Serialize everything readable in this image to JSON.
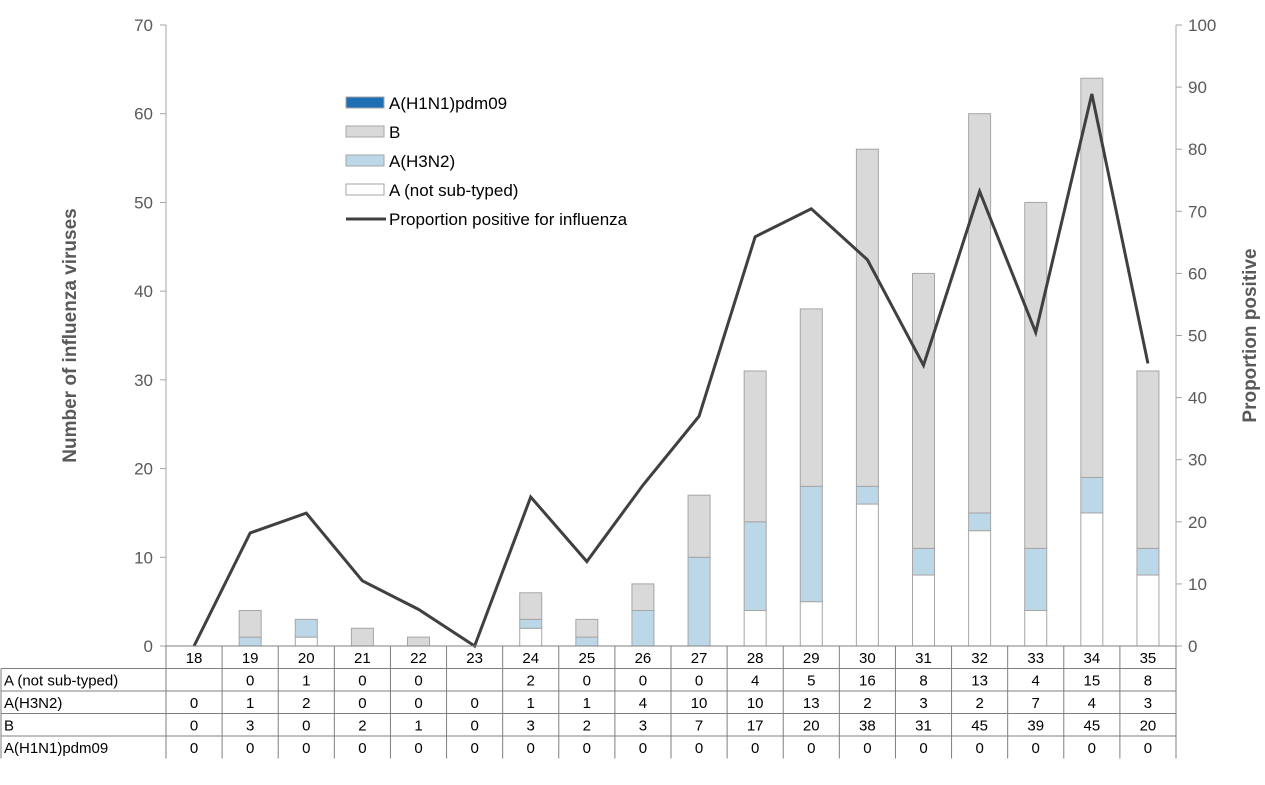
{
  "chart_data": {
    "type": "bar",
    "stacked": true,
    "categories": [
      "18",
      "19",
      "20",
      "21",
      "22",
      "23",
      "24",
      "25",
      "26",
      "27",
      "28",
      "29",
      "30",
      "31",
      "32",
      "33",
      "34",
      "35"
    ],
    "series": [
      {
        "name": "A (not sub-typed)",
        "color": "#ffffff",
        "values": [
          null,
          0,
          1,
          0,
          0,
          null,
          2,
          0,
          0,
          0,
          4,
          5,
          16,
          8,
          13,
          4,
          15,
          8
        ]
      },
      {
        "name": "A(H3N2)",
        "color": "#bcd8e8",
        "values": [
          0,
          1,
          2,
          0,
          0,
          0,
          1,
          1,
          4,
          10,
          10,
          13,
          2,
          3,
          2,
          7,
          4,
          3
        ]
      },
      {
        "name": "B",
        "color": "#d9d9d9",
        "values": [
          0,
          3,
          0,
          2,
          1,
          0,
          3,
          2,
          3,
          7,
          17,
          20,
          38,
          31,
          45,
          39,
          45,
          20
        ]
      },
      {
        "name": "A(H1N1)pdm09",
        "color": "#1f6fb4",
        "values": [
          0,
          0,
          0,
          0,
          0,
          0,
          0,
          0,
          0,
          0,
          0,
          0,
          0,
          0,
          0,
          0,
          0,
          0
        ]
      }
    ],
    "line": {
      "name": "Proportion positive for influenza",
      "color": "#404040",
      "axis": "right",
      "values": [
        0,
        18.2,
        21.4,
        10.5,
        5.9,
        0,
        24,
        13.6,
        25.9,
        37,
        65.9,
        70.4,
        62.2,
        45.2,
        73.2,
        50.5,
        88.9,
        45.5
      ]
    },
    "ylabel": "Number of influenza viruses",
    "y2label": "Proportion positive",
    "ylim": [
      0,
      70
    ],
    "y2lim": [
      0,
      100
    ],
    "yticks": [
      "0",
      "10",
      "20",
      "30",
      "40",
      "50",
      "60",
      "70"
    ],
    "y2ticks": [
      "0",
      "10",
      "20",
      "30",
      "40",
      "50",
      "60",
      "70",
      "80",
      "90",
      "100"
    ],
    "legend_order": [
      "A(H1N1)pdm09",
      "B",
      "A(H3N2)",
      "A (not sub-typed)",
      "Proportion positive for influenza"
    ],
    "legend_position": "top-left",
    "table_rows": [
      "A (not sub-typed)",
      "A(H3N2)",
      "B",
      "A(H1N1)pdm09"
    ],
    "grid": false
  }
}
